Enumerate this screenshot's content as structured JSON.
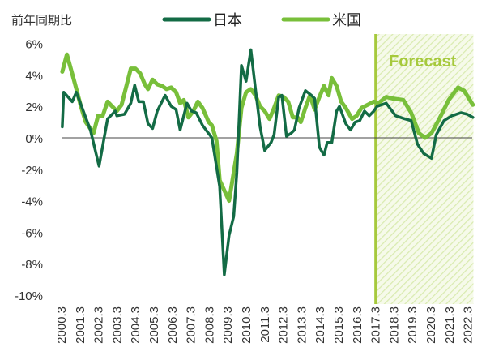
{
  "chart_data": {
    "type": "line",
    "ylabel": "前年同期比",
    "ylim": [
      -10,
      6
    ],
    "y_ticks": [
      "6%",
      "4%",
      "2%",
      "0%",
      "-2%",
      "-4%",
      "-6%",
      "-8%",
      "-10%"
    ],
    "y_tick_values": [
      6,
      4,
      2,
      0,
      -2,
      -4,
      -6,
      -8,
      -10
    ],
    "x_ticks": [
      "2000.3",
      "2001.3",
      "2002.3",
      "2003.3",
      "2004.3",
      "2005.3",
      "2006.3",
      "2007.3",
      "2008.3",
      "2009.3",
      "2010.3",
      "2011.3",
      "2012.3",
      "2013.3",
      "2014.3",
      "2015.3",
      "2016.3",
      "2017.3",
      "2018.3",
      "2019.3",
      "2020.3",
      "2021.3",
      "2022.3"
    ],
    "xlim": [
      2000.2,
      2022.55
    ],
    "grid": false,
    "legend_position": "top",
    "forecast": {
      "label": "Forecast",
      "from": 2017.22,
      "to": 2022.55,
      "color": "#a6c93c"
    },
    "series": [
      {
        "name": "日本",
        "color": "#136b45",
        "points": [
          [
            2000.29,
            0.7
          ],
          [
            2000.37,
            2.9
          ],
          [
            2000.83,
            2.3
          ],
          [
            2001.05,
            2.9
          ],
          [
            2001.81,
            0.5
          ],
          [
            2002.28,
            -1.8
          ],
          [
            2002.74,
            1.2
          ],
          [
            2003.16,
            1.7
          ],
          [
            2003.24,
            1.4
          ],
          [
            2003.66,
            1.5
          ],
          [
            2004.0,
            2.2
          ],
          [
            2004.21,
            3.35
          ],
          [
            2004.43,
            2.3
          ],
          [
            2004.68,
            2.3
          ],
          [
            2004.93,
            0.9
          ],
          [
            2005.18,
            0.6
          ],
          [
            2005.43,
            1.7
          ],
          [
            2005.86,
            2.7
          ],
          [
            2006.19,
            2.0
          ],
          [
            2006.45,
            1.8
          ],
          [
            2006.67,
            0.5
          ],
          [
            2007.04,
            2.2
          ],
          [
            2007.29,
            1.7
          ],
          [
            2007.54,
            1.6
          ],
          [
            2007.88,
            0.8
          ],
          [
            2008.39,
            0.0
          ],
          [
            2008.81,
            -3.1
          ],
          [
            2009.06,
            -8.7
          ],
          [
            2009.32,
            -6.2
          ],
          [
            2009.57,
            -5.0
          ],
          [
            2009.74,
            -2.2
          ],
          [
            2009.99,
            4.6
          ],
          [
            2010.24,
            3.6
          ],
          [
            2010.5,
            5.6
          ],
          [
            2010.75,
            3.1
          ],
          [
            2011.0,
            0.7
          ],
          [
            2011.25,
            -0.8
          ],
          [
            2011.59,
            -0.3
          ],
          [
            2011.76,
            0.2
          ],
          [
            2012.01,
            2.6
          ],
          [
            2012.18,
            2.7
          ],
          [
            2012.43,
            0.1
          ],
          [
            2012.69,
            0.3
          ],
          [
            2012.86,
            0.5
          ],
          [
            2013.11,
            1.9
          ],
          [
            2013.45,
            3.0
          ],
          [
            2013.78,
            2.7
          ],
          [
            2013.95,
            2.5
          ],
          [
            2014.21,
            -0.6
          ],
          [
            2014.46,
            -1.1
          ],
          [
            2014.63,
            -0.3
          ],
          [
            2014.88,
            -0.3
          ],
          [
            2015.14,
            1.7
          ],
          [
            2015.3,
            2.0
          ],
          [
            2015.64,
            0.9
          ],
          [
            2015.9,
            0.5
          ],
          [
            2016.15,
            1.0
          ],
          [
            2016.4,
            1.1
          ],
          [
            2016.65,
            1.7
          ],
          [
            2016.91,
            1.4
          ],
          [
            2017.16,
            1.7
          ],
          [
            2017.33,
            2.0
          ],
          [
            2017.83,
            2.2
          ],
          [
            2018.34,
            1.4
          ],
          [
            2018.85,
            1.2
          ],
          [
            2019.18,
            1.1
          ],
          [
            2019.52,
            -0.4
          ],
          [
            2019.86,
            -1.0
          ],
          [
            2020.28,
            -1.3
          ],
          [
            2020.54,
            0.2
          ],
          [
            2020.96,
            1.1
          ],
          [
            2021.38,
            1.4
          ],
          [
            2021.88,
            1.6
          ],
          [
            2022.22,
            1.5
          ],
          [
            2022.52,
            1.3
          ]
        ]
      },
      {
        "name": "米国",
        "color": "#78bf3a",
        "points": [
          [
            2000.29,
            4.2
          ],
          [
            2000.54,
            5.3
          ],
          [
            2000.96,
            3.5
          ],
          [
            2001.3,
            2.0
          ],
          [
            2001.56,
            1.0
          ],
          [
            2001.98,
            0.3
          ],
          [
            2002.23,
            1.4
          ],
          [
            2002.48,
            1.4
          ],
          [
            2002.74,
            2.3
          ],
          [
            2002.99,
            2.0
          ],
          [
            2003.24,
            1.7
          ],
          [
            2003.5,
            2.1
          ],
          [
            2004.0,
            4.4
          ],
          [
            2004.25,
            4.4
          ],
          [
            2004.51,
            4.1
          ],
          [
            2004.76,
            3.4
          ],
          [
            2004.93,
            3.1
          ],
          [
            2005.18,
            3.7
          ],
          [
            2005.43,
            3.4
          ],
          [
            2005.69,
            3.3
          ],
          [
            2005.94,
            3.1
          ],
          [
            2006.19,
            3.2
          ],
          [
            2006.45,
            2.9
          ],
          [
            2006.67,
            2.2
          ],
          [
            2006.87,
            2.4
          ],
          [
            2007.12,
            1.3
          ],
          [
            2007.38,
            1.7
          ],
          [
            2007.63,
            2.3
          ],
          [
            2007.88,
            1.9
          ],
          [
            2008.22,
            1.0
          ],
          [
            2008.39,
            0.8
          ],
          [
            2008.64,
            -0.2
          ],
          [
            2008.81,
            -2.7
          ],
          [
            2009.32,
            -4.0
          ],
          [
            2009.74,
            -1.0
          ],
          [
            2009.99,
            1.9
          ],
          [
            2010.24,
            2.9
          ],
          [
            2010.5,
            3.1
          ],
          [
            2010.75,
            2.7
          ],
          [
            2011.0,
            2.0
          ],
          [
            2011.25,
            1.7
          ],
          [
            2011.51,
            1.2
          ],
          [
            2011.76,
            1.9
          ],
          [
            2012.01,
            2.7
          ],
          [
            2012.27,
            2.6
          ],
          [
            2012.52,
            2.3
          ],
          [
            2012.77,
            1.3
          ],
          [
            2013.03,
            1.3
          ],
          [
            2013.2,
            1.0
          ],
          [
            2013.45,
            1.9
          ],
          [
            2013.7,
            2.7
          ],
          [
            2013.95,
            1.8
          ],
          [
            2014.21,
            2.6
          ],
          [
            2014.46,
            3.3
          ],
          [
            2014.71,
            2.7
          ],
          [
            2014.88,
            3.8
          ],
          [
            2015.14,
            3.3
          ],
          [
            2015.39,
            2.3
          ],
          [
            2015.64,
            1.9
          ],
          [
            2015.98,
            1.2
          ],
          [
            2016.23,
            1.4
          ],
          [
            2016.49,
            1.9
          ],
          [
            2016.82,
            2.1
          ],
          [
            2017.16,
            2.3
          ],
          [
            2017.41,
            2.2
          ],
          [
            2017.83,
            2.6
          ],
          [
            2018.17,
            2.5
          ],
          [
            2018.76,
            2.4
          ],
          [
            2019.18,
            1.6
          ],
          [
            2019.6,
            0.3
          ],
          [
            2019.94,
            0.0
          ],
          [
            2020.28,
            0.3
          ],
          [
            2020.7,
            1.2
          ],
          [
            2021.21,
            2.4
          ],
          [
            2021.72,
            3.2
          ],
          [
            2022.05,
            3.0
          ],
          [
            2022.52,
            2.1
          ]
        ]
      }
    ]
  }
}
